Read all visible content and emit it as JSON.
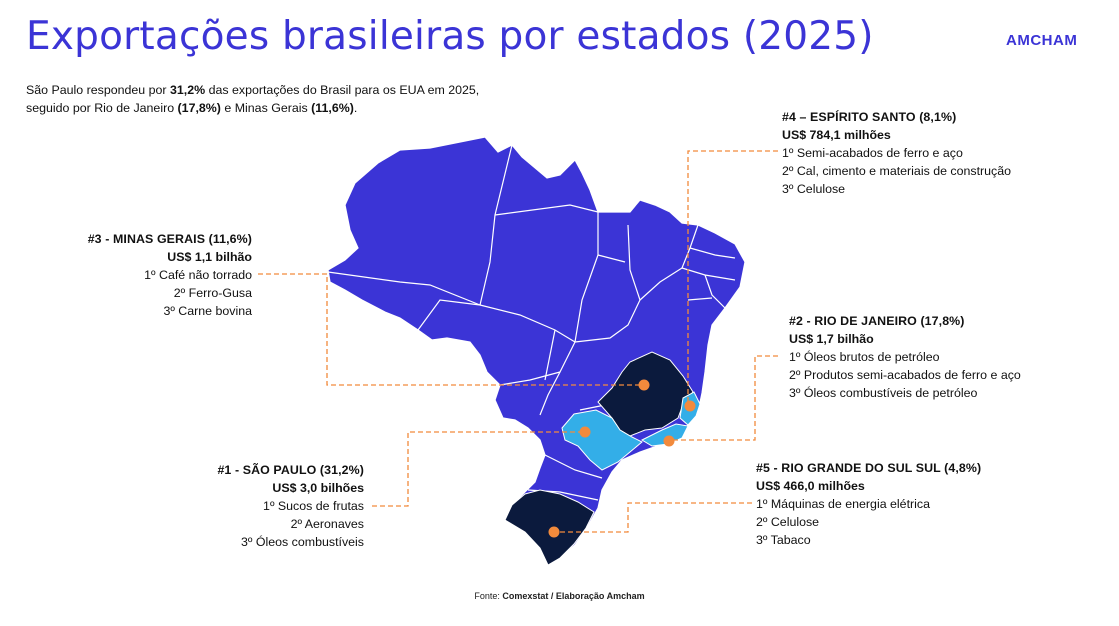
{
  "header": {
    "title": "Exportações brasileiras por estados (2025)",
    "brand": "AMCHAM"
  },
  "intro": {
    "part1": "São Paulo respondeu por ",
    "highlight1": "31,2%",
    "part2": " das exportações do Brasil para os EUA em 2025, seguido por Rio de Janeiro ",
    "highlight2": "(17,8%)",
    "part3": " e Minas Gerais ",
    "highlight3": "(11,6%)",
    "part4": "."
  },
  "colors": {
    "map_base": "#3b34d6",
    "borders": "#ffffff",
    "rank_dark": "#0b1a3d",
    "rank_light": "#33aee8",
    "marker": "#f28a3c",
    "leader": "#f28a3c",
    "title": "#3b34d6"
  },
  "callouts": {
    "es": {
      "title": "#4 – ESPÍRITO SANTO (8,1%)",
      "value": "US$ 784,1 milhões",
      "items": [
        "1º Semi-acabados de ferro e aço",
        "2º Cal, cimento e materiais de construção",
        "3º Celulose"
      ]
    },
    "mg": {
      "title": "#3 - MINAS GERAIS (11,6%)",
      "value": "US$ 1,1 bilhão",
      "items": [
        "1º Café não torrado",
        "2º Ferro-Gusa",
        "3º Carne bovina"
      ]
    },
    "rj": {
      "title": "#2 - RIO DE JANEIRO (17,8%)",
      "value": "US$ 1,7 bilhão",
      "items": [
        "1º Óleos brutos de petróleo",
        "2º Produtos semi-acabados de ferro e aço",
        "3º Óleos combustíveis de petróleo"
      ]
    },
    "sp": {
      "title": "#1 - SÃO PAULO (31,2%)",
      "value": "US$ 3,0 bilhões",
      "items": [
        "1º Sucos de frutas",
        "2º Aeronaves",
        "3º Óleos combustíveis"
      ]
    },
    "rs": {
      "title": "#5 - RIO GRANDE DO SUL SUL (4,8%)",
      "value": "US$ 466,0 milhões",
      "items": [
        "1º Máquinas de energia elétrica",
        "2º Celulose",
        "3º Tabaco"
      ]
    }
  },
  "source": {
    "prefix": "Fonte: ",
    "text": "Comexstat / Elaboração Amcham"
  }
}
